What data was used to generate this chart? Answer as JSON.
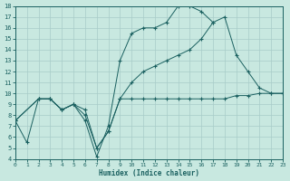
{
  "background_color": "#c8e8e0",
  "grid_color": "#a8ccc8",
  "line_color": "#1a6060",
  "xlabel": "Humidex (Indice chaleur)",
  "xlim": [
    0,
    23
  ],
  "ylim": [
    4,
    18
  ],
  "xticks": [
    0,
    1,
    2,
    3,
    4,
    5,
    6,
    7,
    8,
    9,
    10,
    11,
    12,
    13,
    14,
    15,
    16,
    17,
    18,
    19,
    20,
    21,
    22,
    23
  ],
  "yticks": [
    4,
    5,
    6,
    7,
    8,
    9,
    10,
    11,
    12,
    13,
    14,
    15,
    16,
    17,
    18
  ],
  "s1_x": [
    0,
    1,
    2,
    3,
    4,
    5,
    6,
    7,
    8,
    9,
    10,
    11,
    12,
    13,
    14,
    15,
    16,
    17
  ],
  "s1_y": [
    7.5,
    5.5,
    9.5,
    9.5,
    8.5,
    9.0,
    7.5,
    4.2,
    7.0,
    13.0,
    15.5,
    16.0,
    16.0,
    16.5,
    18.0,
    18.0,
    17.5,
    16.5
  ],
  "s2_x": [
    0,
    2,
    3,
    4,
    5,
    6,
    7,
    8,
    9,
    10,
    11,
    12,
    13,
    14,
    15,
    16,
    17,
    18,
    19,
    20,
    21,
    22,
    23
  ],
  "s2_y": [
    7.5,
    9.5,
    9.5,
    8.5,
    9.0,
    8.0,
    5.0,
    6.5,
    9.5,
    11.0,
    12.0,
    12.5,
    13.0,
    13.5,
    14.0,
    15.0,
    16.5,
    17.0,
    13.5,
    12.0,
    10.5,
    10.0,
    10.0
  ],
  "s3_x": [
    0,
    2,
    3,
    4,
    5,
    6,
    7,
    8,
    9,
    10,
    11,
    12,
    13,
    14,
    15,
    16,
    17,
    18,
    19,
    20,
    21,
    22,
    23
  ],
  "s3_y": [
    7.5,
    9.5,
    9.5,
    8.5,
    9.0,
    8.5,
    5.0,
    6.5,
    9.5,
    9.5,
    9.5,
    9.5,
    9.5,
    9.5,
    9.5,
    9.5,
    9.5,
    9.5,
    9.8,
    9.8,
    10.0,
    10.0,
    10.0
  ]
}
